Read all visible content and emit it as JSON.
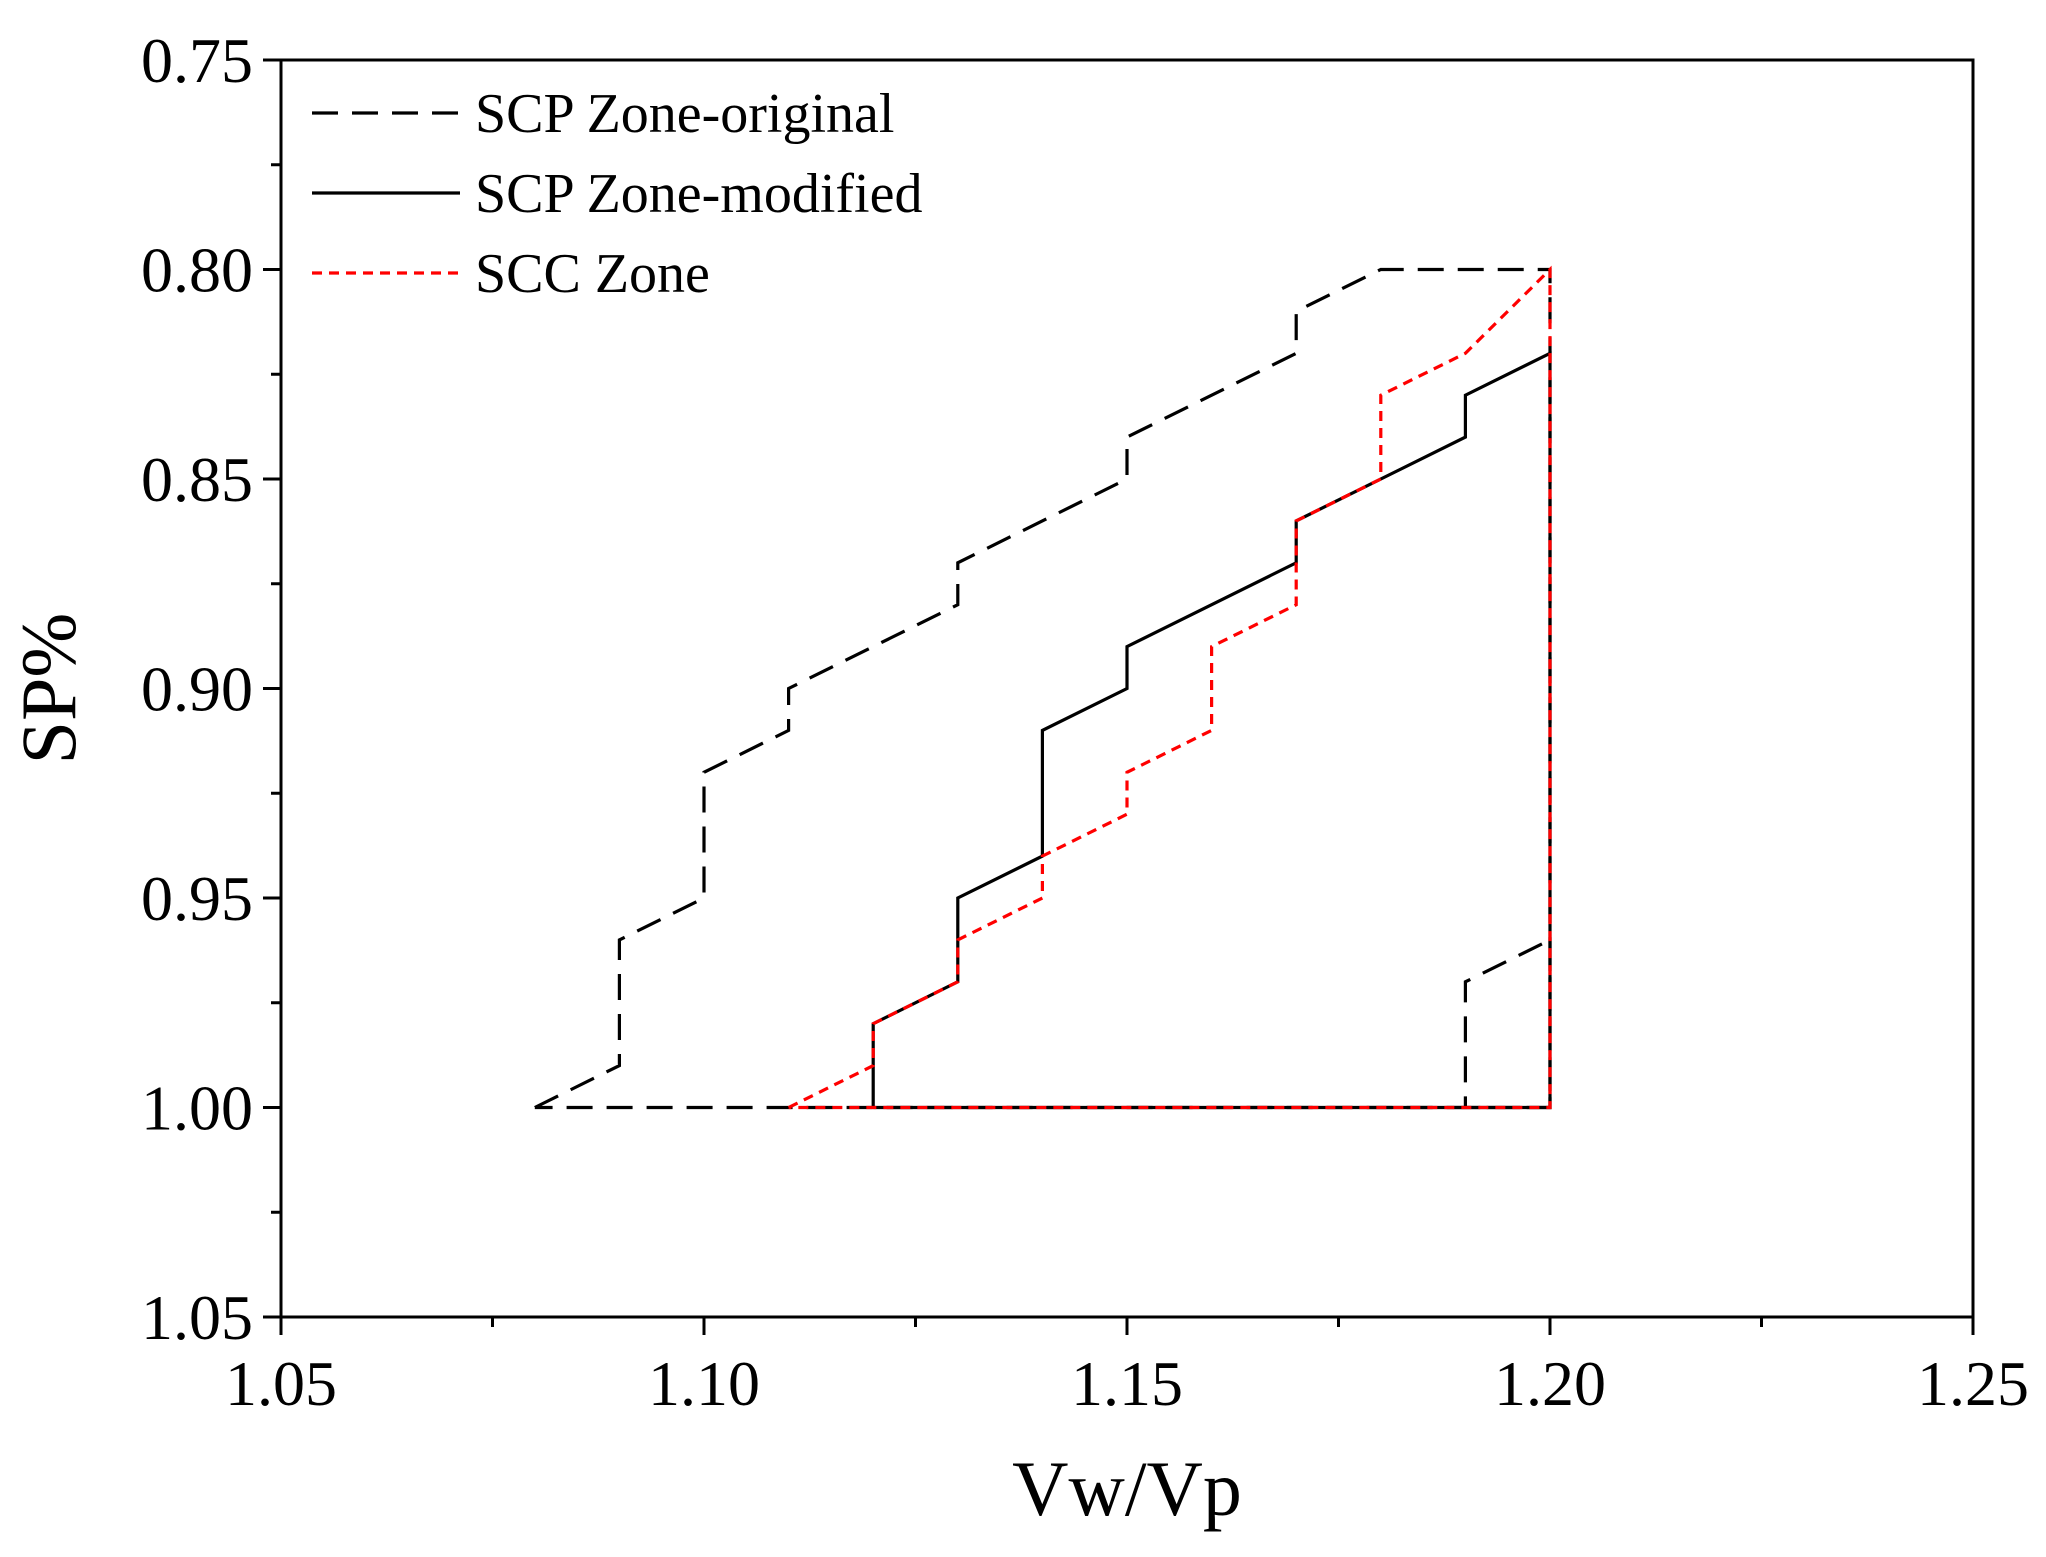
{
  "chart_data": {
    "type": "line",
    "title": "",
    "xlabel": "Vw/Vp",
    "ylabel": "SP%",
    "xlim": [
      1.05,
      1.25
    ],
    "ylim": [
      1.05,
      0.75
    ],
    "y_inverted": true,
    "x_ticks": [
      "1.05",
      "1.10",
      "1.15",
      "1.20",
      "1.25"
    ],
    "y_ticks": [
      "0.75",
      "0.80",
      "0.85",
      "0.90",
      "0.95",
      "1.00",
      "1.05"
    ],
    "x_tick_values": [
      1.05,
      1.1,
      1.15,
      1.2,
      1.25
    ],
    "y_tick_values": [
      0.75,
      0.8,
      0.85,
      0.9,
      0.95,
      1.0,
      1.05
    ],
    "legend_position": "top-left",
    "series": [
      {
        "name": "SCP Zone-original",
        "color": "#000000",
        "style": "dashed",
        "x": [
          1.08,
          1.09,
          1.09,
          1.1,
          1.1,
          1.11,
          1.11,
          1.13,
          1.13,
          1.15,
          1.15,
          1.17,
          1.17,
          1.18,
          1.2,
          1.2,
          1.19,
          1.19,
          1.2,
          1.2,
          1.08
        ],
        "y": [
          1.0,
          0.99,
          0.96,
          0.95,
          0.92,
          0.91,
          0.9,
          0.88,
          0.87,
          0.85,
          0.84,
          0.82,
          0.81,
          0.8,
          0.8,
          1.0,
          1.0,
          0.97,
          0.96,
          1.0,
          1.0
        ]
      },
      {
        "name": "SCP Zone-modified",
        "color": "#000000",
        "style": "solid",
        "x": [
          1.12,
          1.12,
          1.13,
          1.13,
          1.14,
          1.14,
          1.15,
          1.15,
          1.17,
          1.17,
          1.19,
          1.19,
          1.2,
          1.2,
          1.12
        ],
        "y": [
          1.0,
          0.98,
          0.97,
          0.95,
          0.94,
          0.91,
          0.9,
          0.89,
          0.87,
          0.86,
          0.84,
          0.83,
          0.82,
          1.0,
          1.0
        ]
      },
      {
        "name": "SCC Zone",
        "color": "#ff0000",
        "style": "dotted",
        "x": [
          1.11,
          1.12,
          1.12,
          1.13,
          1.13,
          1.14,
          1.14,
          1.15,
          1.15,
          1.16,
          1.16,
          1.17,
          1.17,
          1.18,
          1.18,
          1.19,
          1.2,
          1.2,
          1.11
        ],
        "y": [
          1.0,
          0.99,
          0.98,
          0.97,
          0.96,
          0.95,
          0.94,
          0.93,
          0.92,
          0.91,
          0.89,
          0.88,
          0.86,
          0.85,
          0.83,
          0.82,
          0.8,
          1.0,
          1.0
        ]
      }
    ]
  }
}
